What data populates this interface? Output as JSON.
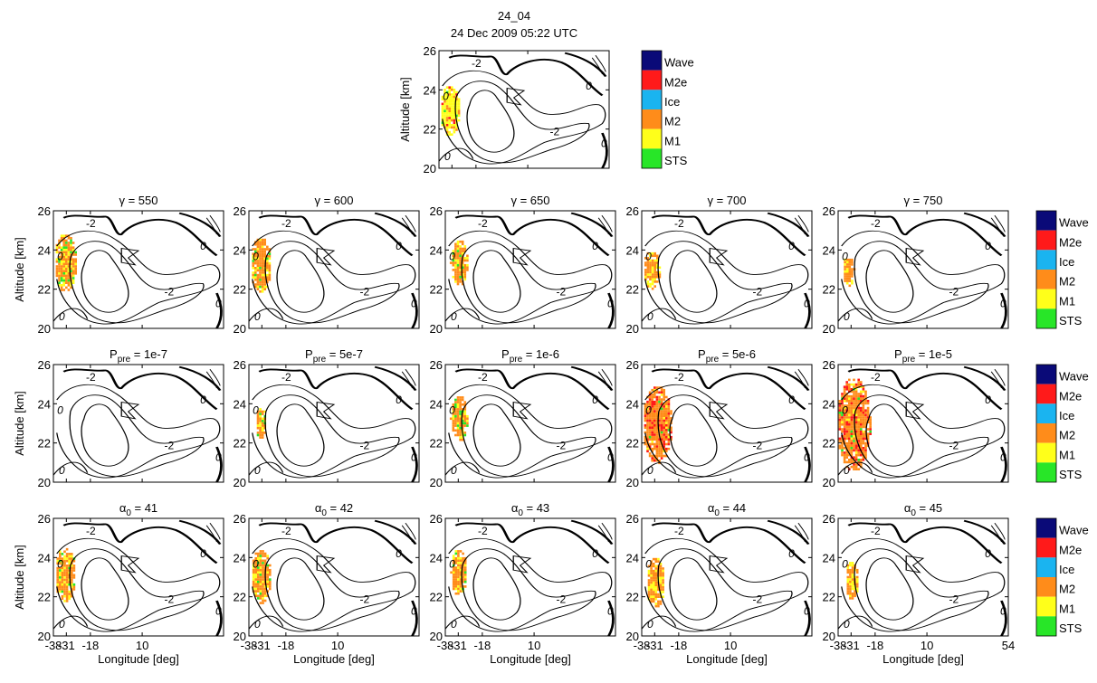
{
  "figure": {
    "title_line1": "24_04",
    "title_line2": "24 Dec 2009 05:22 UTC"
  },
  "axes": {
    "ylabel": "Altitude [km]",
    "xlabel": "Longitude [deg]",
    "yticks": [
      "20",
      "22",
      "24",
      "26"
    ],
    "xticks": [
      "-38",
      "-31",
      "-18",
      "10"
    ],
    "last_xtick": "54",
    "contour_label_inner": "-2",
    "contour_label_edge": "0"
  },
  "legend": {
    "entries": [
      {
        "label": "Wave",
        "color": "#0a0a78"
      },
      {
        "label": "M2e",
        "color": "#ff1a1a"
      },
      {
        "label": "Ice",
        "color": "#1ab4f0"
      },
      {
        "label": "M2",
        "color": "#ff8c1a"
      },
      {
        "label": "M1",
        "color": "#ffff1a"
      },
      {
        "label": "STS",
        "color": "#28e628"
      }
    ]
  },
  "chart_data": {
    "type": "heatmap",
    "xlim": [
      -38,
      54
    ],
    "ylim": [
      20,
      26
    ],
    "grid": false,
    "panels": [
      {
        "id": "obs",
        "title": "",
        "cloud": {
          "lon": -32.5,
          "alt": 23.0,
          "lon_half": 5.5,
          "alt_half": 1.3,
          "mix": [
            "M1",
            "M2",
            "STS",
            "M2e"
          ]
        }
      },
      {
        "id": "gamma-550",
        "title_sym": "γ",
        "title_sub": "",
        "title_val": " = 550",
        "cloud": {
          "lon": -32,
          "alt": 23.4,
          "lon_half": 6,
          "alt_half": 1.5,
          "mix": [
            "M2",
            "M1",
            "STS"
          ]
        }
      },
      {
        "id": "gamma-600",
        "title_sym": "γ",
        "title_sub": "",
        "title_val": " = 600",
        "cloud": {
          "lon": -32,
          "alt": 23.3,
          "lon_half": 5.6,
          "alt_half": 1.4,
          "mix": [
            "M2",
            "M1",
            "STS"
          ]
        }
      },
      {
        "id": "gamma-650",
        "title_sym": "γ",
        "title_sub": "",
        "title_val": " = 650",
        "cloud": {
          "lon": -31,
          "alt": 23.4,
          "lon_half": 4.6,
          "alt_half": 1.2,
          "mix": [
            "M2",
            "M1",
            "STS"
          ]
        }
      },
      {
        "id": "gamma-700",
        "title_sym": "γ",
        "title_sub": "",
        "title_val": " = 700",
        "cloud": {
          "lon": -33,
          "alt": 23.0,
          "lon_half": 4.8,
          "alt_half": 1.0,
          "mix": [
            "M2",
            "M1"
          ]
        }
      },
      {
        "id": "gamma-750",
        "title_sym": "γ",
        "title_sub": "",
        "title_val": " = 750",
        "cloud": {
          "lon": -33,
          "alt": 23.0,
          "lon_half": 3.2,
          "alt_half": 0.8,
          "mix": [
            "M2",
            "M1"
          ]
        }
      },
      {
        "id": "ppre-1e-7",
        "title_sym": "P",
        "title_sub": "pre",
        "title_val": " = 1e-7",
        "cloud": null
      },
      {
        "id": "ppre-5e-7",
        "title_sym": "P",
        "title_sub": "pre",
        "title_val": " = 5e-7",
        "cloud": {
          "lon": -32,
          "alt": 23.1,
          "lon_half": 3.0,
          "alt_half": 0.8,
          "mix": [
            "M2",
            "M1",
            "STS"
          ]
        }
      },
      {
        "id": "ppre-1e-6",
        "title_sym": "P",
        "title_sub": "pre",
        "title_val": " = 1e-6",
        "cloud": {
          "lon": -31,
          "alt": 23.3,
          "lon_half": 4.6,
          "alt_half": 1.2,
          "mix": [
            "M2",
            "M1",
            "STS"
          ]
        }
      },
      {
        "id": "ppre-5e-6",
        "title_sym": "P",
        "title_sub": "pre",
        "title_val": " = 5e-6",
        "cloud": {
          "lon": -30,
          "alt": 23.0,
          "lon_half": 8,
          "alt_half": 2.0,
          "mix": [
            "M2",
            "M2e",
            "M1",
            "STS"
          ]
        }
      },
      {
        "id": "ppre-1e-5",
        "title_sym": "P",
        "title_sub": "pre",
        "title_val": " = 1e-5",
        "cloud": {
          "lon": -30,
          "alt": 23.0,
          "lon_half": 9,
          "alt_half": 2.4,
          "mix": [
            "M2",
            "M2e",
            "M1",
            "STS"
          ]
        }
      },
      {
        "id": "alpha-41",
        "title_sym": "α",
        "title_sub": "0",
        "title_val": " = 41",
        "cloud": {
          "lon": -32,
          "alt": 23.2,
          "lon_half": 5.6,
          "alt_half": 1.4,
          "mix": [
            "M2",
            "M1",
            "STS"
          ]
        }
      },
      {
        "id": "alpha-42",
        "title_sym": "α",
        "title_sub": "0",
        "title_val": " = 42",
        "cloud": {
          "lon": -32,
          "alt": 23.1,
          "lon_half": 5.4,
          "alt_half": 1.4,
          "mix": [
            "M2",
            "M1",
            "STS"
          ]
        }
      },
      {
        "id": "alpha-43",
        "title_sym": "α",
        "title_sub": "0",
        "title_val": " = 43",
        "cloud": {
          "lon": -31,
          "alt": 23.3,
          "lon_half": 4.4,
          "alt_half": 1.2,
          "mix": [
            "M2",
            "M1",
            "STS"
          ]
        }
      },
      {
        "id": "alpha-44",
        "title_sym": "α",
        "title_sub": "0",
        "title_val": " = 44",
        "cloud": {
          "lon": -31,
          "alt": 22.8,
          "lon_half": 5.0,
          "alt_half": 1.3,
          "mix": [
            "M2",
            "M1"
          ]
        }
      },
      {
        "id": "alpha-45",
        "title_sym": "α",
        "title_sub": "0",
        "title_val": " = 45",
        "cloud": {
          "lon": -31,
          "alt": 22.9,
          "lon_half": 3.6,
          "alt_half": 1.0,
          "mix": [
            "M2",
            "M1"
          ]
        }
      }
    ]
  }
}
